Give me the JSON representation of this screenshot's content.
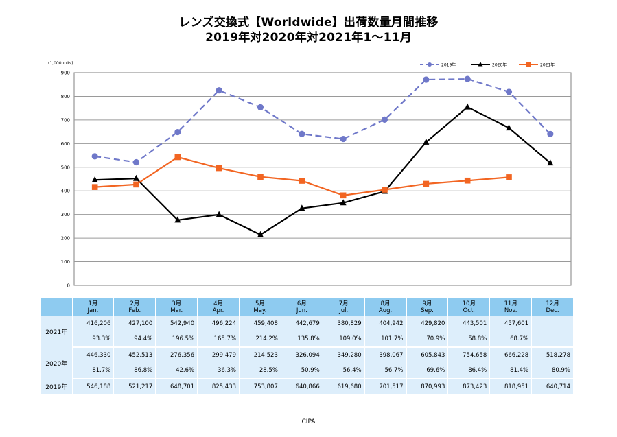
{
  "title": {
    "line1": "レンズ交換式【Worldwide】出荷数量月間推移",
    "line2": "2019年対2020年対2021年1～11月"
  },
  "chart_data": {
    "type": "line",
    "unit_label": "(1,000units)",
    "categories": [
      "1月 Jan.",
      "2月 Feb.",
      "3月 Mar.",
      "4月 Apr.",
      "5月 May.",
      "6月 Jun.",
      "7月 Jul.",
      "8月 Aug.",
      "9月 Sep.",
      "10月 Oct.",
      "11月 Nov.",
      "12月 Dec."
    ],
    "ylim": [
      0,
      900
    ],
    "yticks": [
      0,
      100,
      200,
      300,
      400,
      500,
      600,
      700,
      800,
      900
    ],
    "grid": true,
    "legend_position": "top-right",
    "series": [
      {
        "name": "2019年",
        "color": "#6f78c9",
        "dash": true,
        "marker": "circle",
        "values": [
          546.188,
          521.217,
          648.701,
          825.433,
          753.807,
          640.866,
          619.68,
          701.517,
          870.993,
          873.423,
          818.951,
          640.714
        ]
      },
      {
        "name": "2020年",
        "color": "#000000",
        "dash": false,
        "marker": "triangle",
        "values": [
          446.33,
          452.513,
          276.356,
          299.479,
          214.523,
          326.094,
          349.28,
          398.067,
          605.843,
          754.658,
          666.228,
          518.278
        ]
      },
      {
        "name": "2021年",
        "color": "#f26522",
        "dash": false,
        "marker": "square",
        "values": [
          416.206,
          427.1,
          542.94,
          496.224,
          459.408,
          442.679,
          380.829,
          404.942,
          429.82,
          443.501,
          457.601,
          null
        ]
      }
    ]
  },
  "table": {
    "months": [
      {
        "jp": "1月",
        "en": "Jan."
      },
      {
        "jp": "2月",
        "en": "Feb."
      },
      {
        "jp": "3月",
        "en": "Mar."
      },
      {
        "jp": "4月",
        "en": "Apr."
      },
      {
        "jp": "5月",
        "en": "May."
      },
      {
        "jp": "6月",
        "en": "Jun."
      },
      {
        "jp": "7月",
        "en": "Jul."
      },
      {
        "jp": "8月",
        "en": "Aug."
      },
      {
        "jp": "9月",
        "en": "Sep."
      },
      {
        "jp": "10月",
        "en": "Oct."
      },
      {
        "jp": "11月",
        "en": "Nov."
      },
      {
        "jp": "12月",
        "en": "Dec."
      }
    ],
    "rows": [
      {
        "label": "2021年",
        "values": [
          "416,206",
          "427,100",
          "542,940",
          "496,224",
          "459,408",
          "442,679",
          "380,829",
          "404,942",
          "429,820",
          "443,501",
          "457,601",
          ""
        ],
        "ratios": [
          "93.3%",
          "94.4%",
          "196.5%",
          "165.7%",
          "214.2%",
          "135.8%",
          "109.0%",
          "101.7%",
          "70.9%",
          "58.8%",
          "68.7%",
          ""
        ]
      },
      {
        "label": "2020年",
        "values": [
          "446,330",
          "452,513",
          "276,356",
          "299,479",
          "214,523",
          "326,094",
          "349,280",
          "398,067",
          "605,843",
          "754,658",
          "666,228",
          "518,278"
        ],
        "ratios": [
          "81.7%",
          "86.8%",
          "42.6%",
          "36.3%",
          "28.5%",
          "50.9%",
          "56.4%",
          "56.7%",
          "69.6%",
          "86.4%",
          "81.4%",
          "80.9%"
        ]
      },
      {
        "label": "2019年",
        "values": [
          "546,188",
          "521,217",
          "648,701",
          "825,433",
          "753,807",
          "640,866",
          "619,680",
          "701,517",
          "870,993",
          "873,423",
          "818,951",
          "640,714"
        ]
      }
    ]
  },
  "source": "CIPA"
}
